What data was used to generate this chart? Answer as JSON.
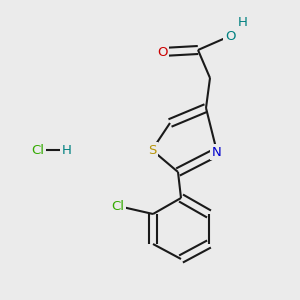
{
  "bg_color": "#ebebeb",
  "bond_color": "#1a1a1a",
  "O_color": "#cc0000",
  "OH_color": "#008080",
  "S_color": "#b8960c",
  "N_color": "#0000cc",
  "Cl_color": "#33aa00",
  "H_color": "#008080",
  "figsize": [
    3.0,
    3.0
  ],
  "dpi": 100,
  "xlim": [
    0,
    300
  ],
  "ylim": [
    0,
    300
  ]
}
